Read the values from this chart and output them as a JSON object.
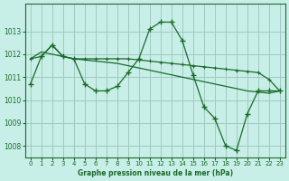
{
  "title": "Graphe pression niveau de la mer (hPa)",
  "bg_color": "#c8eee8",
  "grid_color": "#a0c8c0",
  "line_color": "#1a6b2a",
  "x_ticks": [
    0,
    1,
    2,
    3,
    4,
    5,
    6,
    7,
    8,
    9,
    10,
    11,
    12,
    13,
    14,
    15,
    16,
    17,
    18,
    19,
    20,
    21,
    22,
    23
  ],
  "ylim": [
    1007.5,
    1014.2
  ],
  "yticks": [
    1008,
    1009,
    1010,
    1011,
    1012,
    1013
  ],
  "series1": [
    1010.7,
    1011.9,
    1012.4,
    1011.9,
    1011.8,
    1010.7,
    1010.4,
    1010.4,
    1010.6,
    1011.2,
    1011.8,
    1013.1,
    1013.4,
    1013.4,
    1012.6,
    1011.1,
    1009.7,
    1009.2,
    1008.0,
    1007.8,
    1009.4,
    1010.4,
    1010.4,
    1010.4
  ],
  "series2": [
    1011.8,
    1011.9,
    1012.4,
    1011.9,
    1011.8,
    1011.8,
    1011.8,
    1011.8,
    1011.8,
    1011.8,
    1011.75,
    1011.7,
    1011.65,
    1011.6,
    1011.55,
    1011.5,
    1011.45,
    1011.4,
    1011.35,
    1011.3,
    1011.25,
    1011.2,
    1010.9,
    1010.4
  ],
  "series3": [
    1011.8,
    1012.1,
    1012.0,
    1011.9,
    1011.8,
    1011.75,
    1011.7,
    1011.65,
    1011.6,
    1011.5,
    1011.4,
    1011.3,
    1011.2,
    1011.1,
    1011.0,
    1010.9,
    1010.8,
    1010.7,
    1010.6,
    1010.5,
    1010.4,
    1010.35,
    1010.3,
    1010.4
  ]
}
